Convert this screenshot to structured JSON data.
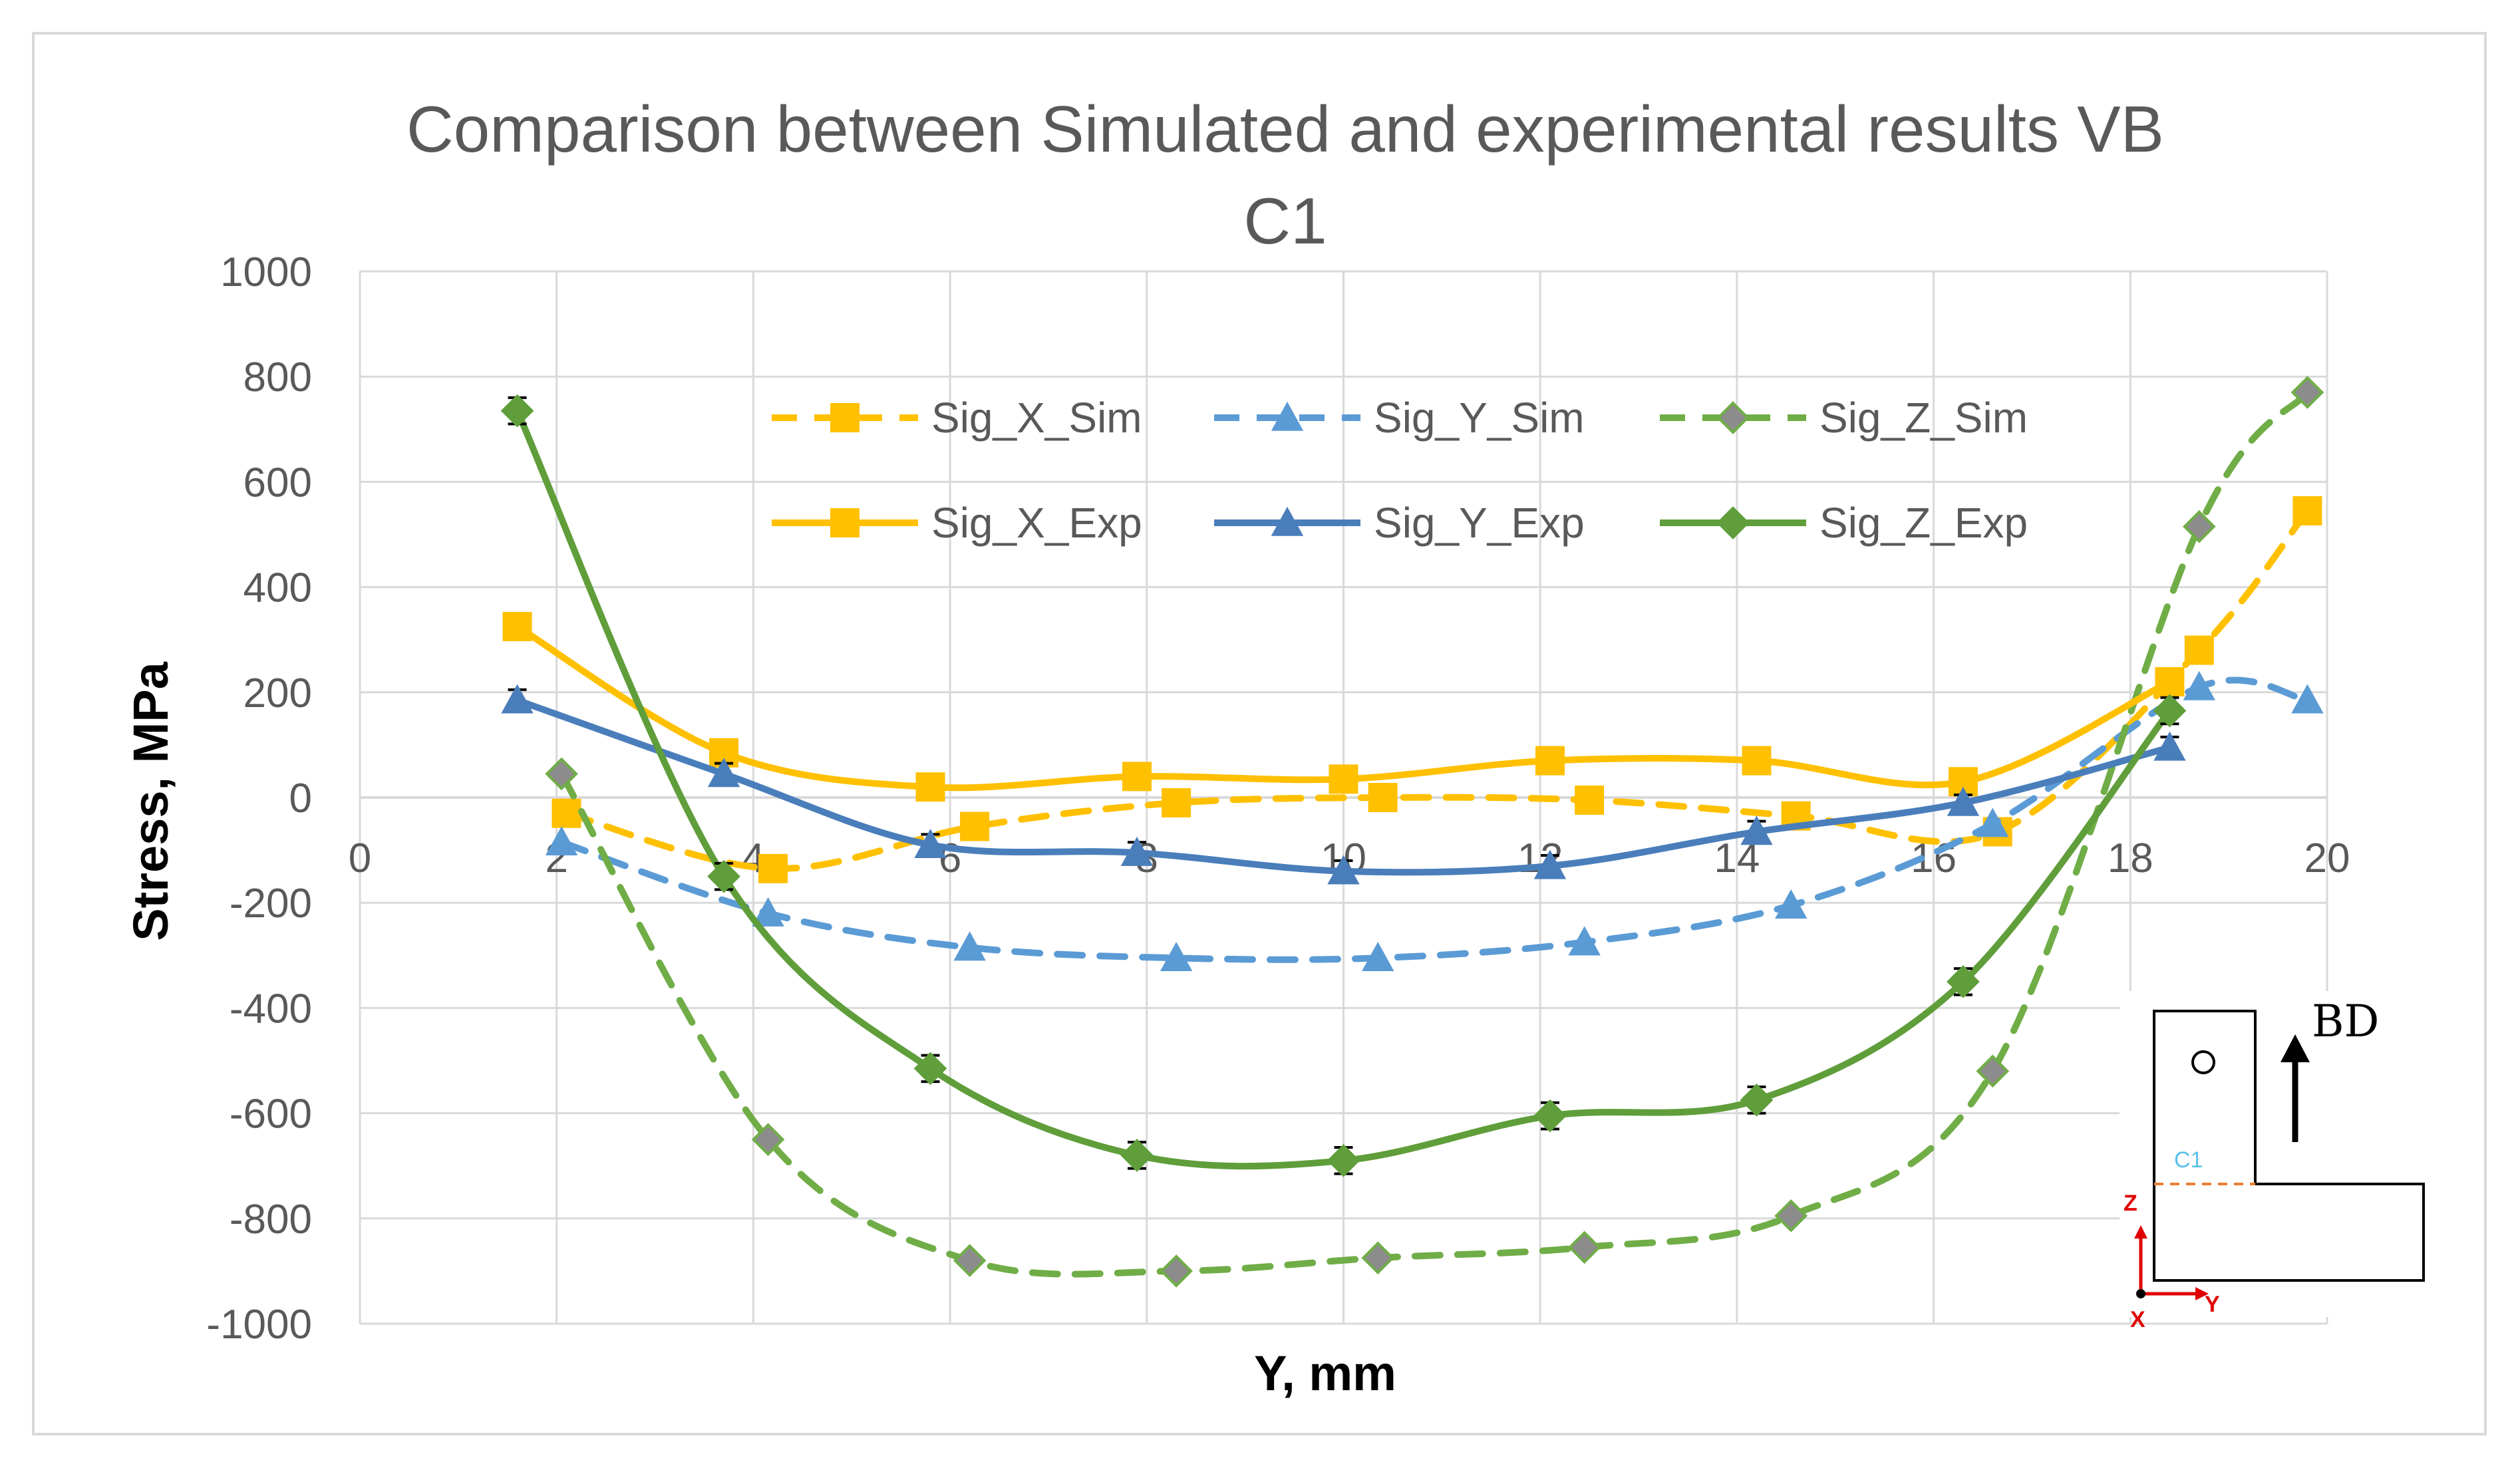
{
  "chart_data": {
    "type": "line",
    "title": "Comparison between Simulated and experimental results VB",
    "title_line2": "C1",
    "xlabel": "Y, mm",
    "ylabel": "Stress, MPa",
    "xlim": [
      0,
      20
    ],
    "ylim": [
      -1000,
      1000
    ],
    "xticks": [
      0,
      2,
      4,
      6,
      8,
      10,
      12,
      14,
      16,
      18,
      20
    ],
    "yticks": [
      1000,
      800,
      600,
      400,
      200,
      0,
      -200,
      -400,
      -600,
      -800,
      -1000
    ],
    "grid": "horizontal",
    "legend_position": "top-center",
    "series": [
      {
        "name": "Sig_X_Sim",
        "color": "#FFC000",
        "style": "dashed",
        "marker": "square",
        "x": [
          2.1,
          4.2,
          6.25,
          8.3,
          10.4,
          12.5,
          14.6,
          16.65,
          18.7,
          19.8
        ],
        "y": [
          -30,
          -135,
          -55,
          -10,
          0,
          -5,
          -35,
          -65,
          280,
          545
        ]
      },
      {
        "name": "Sig_Y_Sim",
        "color": "#5B9BD5",
        "style": "dashed",
        "marker": "triangle",
        "x": [
          2.05,
          4.15,
          6.2,
          8.3,
          10.35,
          12.45,
          14.55,
          16.6,
          18.7,
          19.8
        ],
        "y": [
          -85,
          -220,
          -285,
          -305,
          -305,
          -275,
          -205,
          -50,
          210,
          185
        ]
      },
      {
        "name": "Sig_Z_Sim",
        "color": "#70AD47",
        "style": "dashed",
        "marker": "diamond",
        "x": [
          2.05,
          4.15,
          6.2,
          8.3,
          10.35,
          12.45,
          14.55,
          16.6,
          18.7,
          19.8
        ],
        "y": [
          45,
          -650,
          -880,
          -900,
          -875,
          -855,
          -795,
          -520,
          515,
          770
        ]
      },
      {
        "name": "Sig_X_Exp",
        "color": "#FFC000",
        "style": "solid",
        "marker": "square",
        "x": [
          1.6,
          3.7,
          5.8,
          7.9,
          10.0,
          12.1,
          14.2,
          16.3,
          18.4
        ],
        "y": [
          325,
          85,
          20,
          40,
          35,
          70,
          70,
          30,
          220
        ],
        "err": [
          20,
          20,
          15,
          20,
          20,
          25,
          20,
          15,
          20
        ]
      },
      {
        "name": "Sig_Y_Exp",
        "color": "#4A7EBB",
        "style": "solid",
        "marker": "triangle",
        "x": [
          1.6,
          3.7,
          5.8,
          7.9,
          10.0,
          12.1,
          14.2,
          16.3,
          18.4
        ],
        "y": [
          185,
          45,
          -90,
          -105,
          -140,
          -130,
          -65,
          -10,
          95
        ],
        "err": [
          20,
          20,
          20,
          20,
          20,
          20,
          20,
          15,
          20
        ]
      },
      {
        "name": "Sig_Z_Exp",
        "color": "#5F9E3A",
        "style": "solid",
        "marker": "diamond",
        "x": [
          1.6,
          3.7,
          5.8,
          7.9,
          10.0,
          12.1,
          14.2,
          16.3,
          18.4
        ],
        "y": [
          735,
          -150,
          -515,
          -680,
          -690,
          -605,
          -575,
          -350,
          165
        ],
        "err": [
          25,
          25,
          25,
          25,
          25,
          25,
          25,
          25,
          25
        ]
      }
    ]
  },
  "inset": {
    "bd_label": "BD",
    "section_label": "C1",
    "axis_z": "Z",
    "axis_y": "Y",
    "axis_x": "X"
  }
}
